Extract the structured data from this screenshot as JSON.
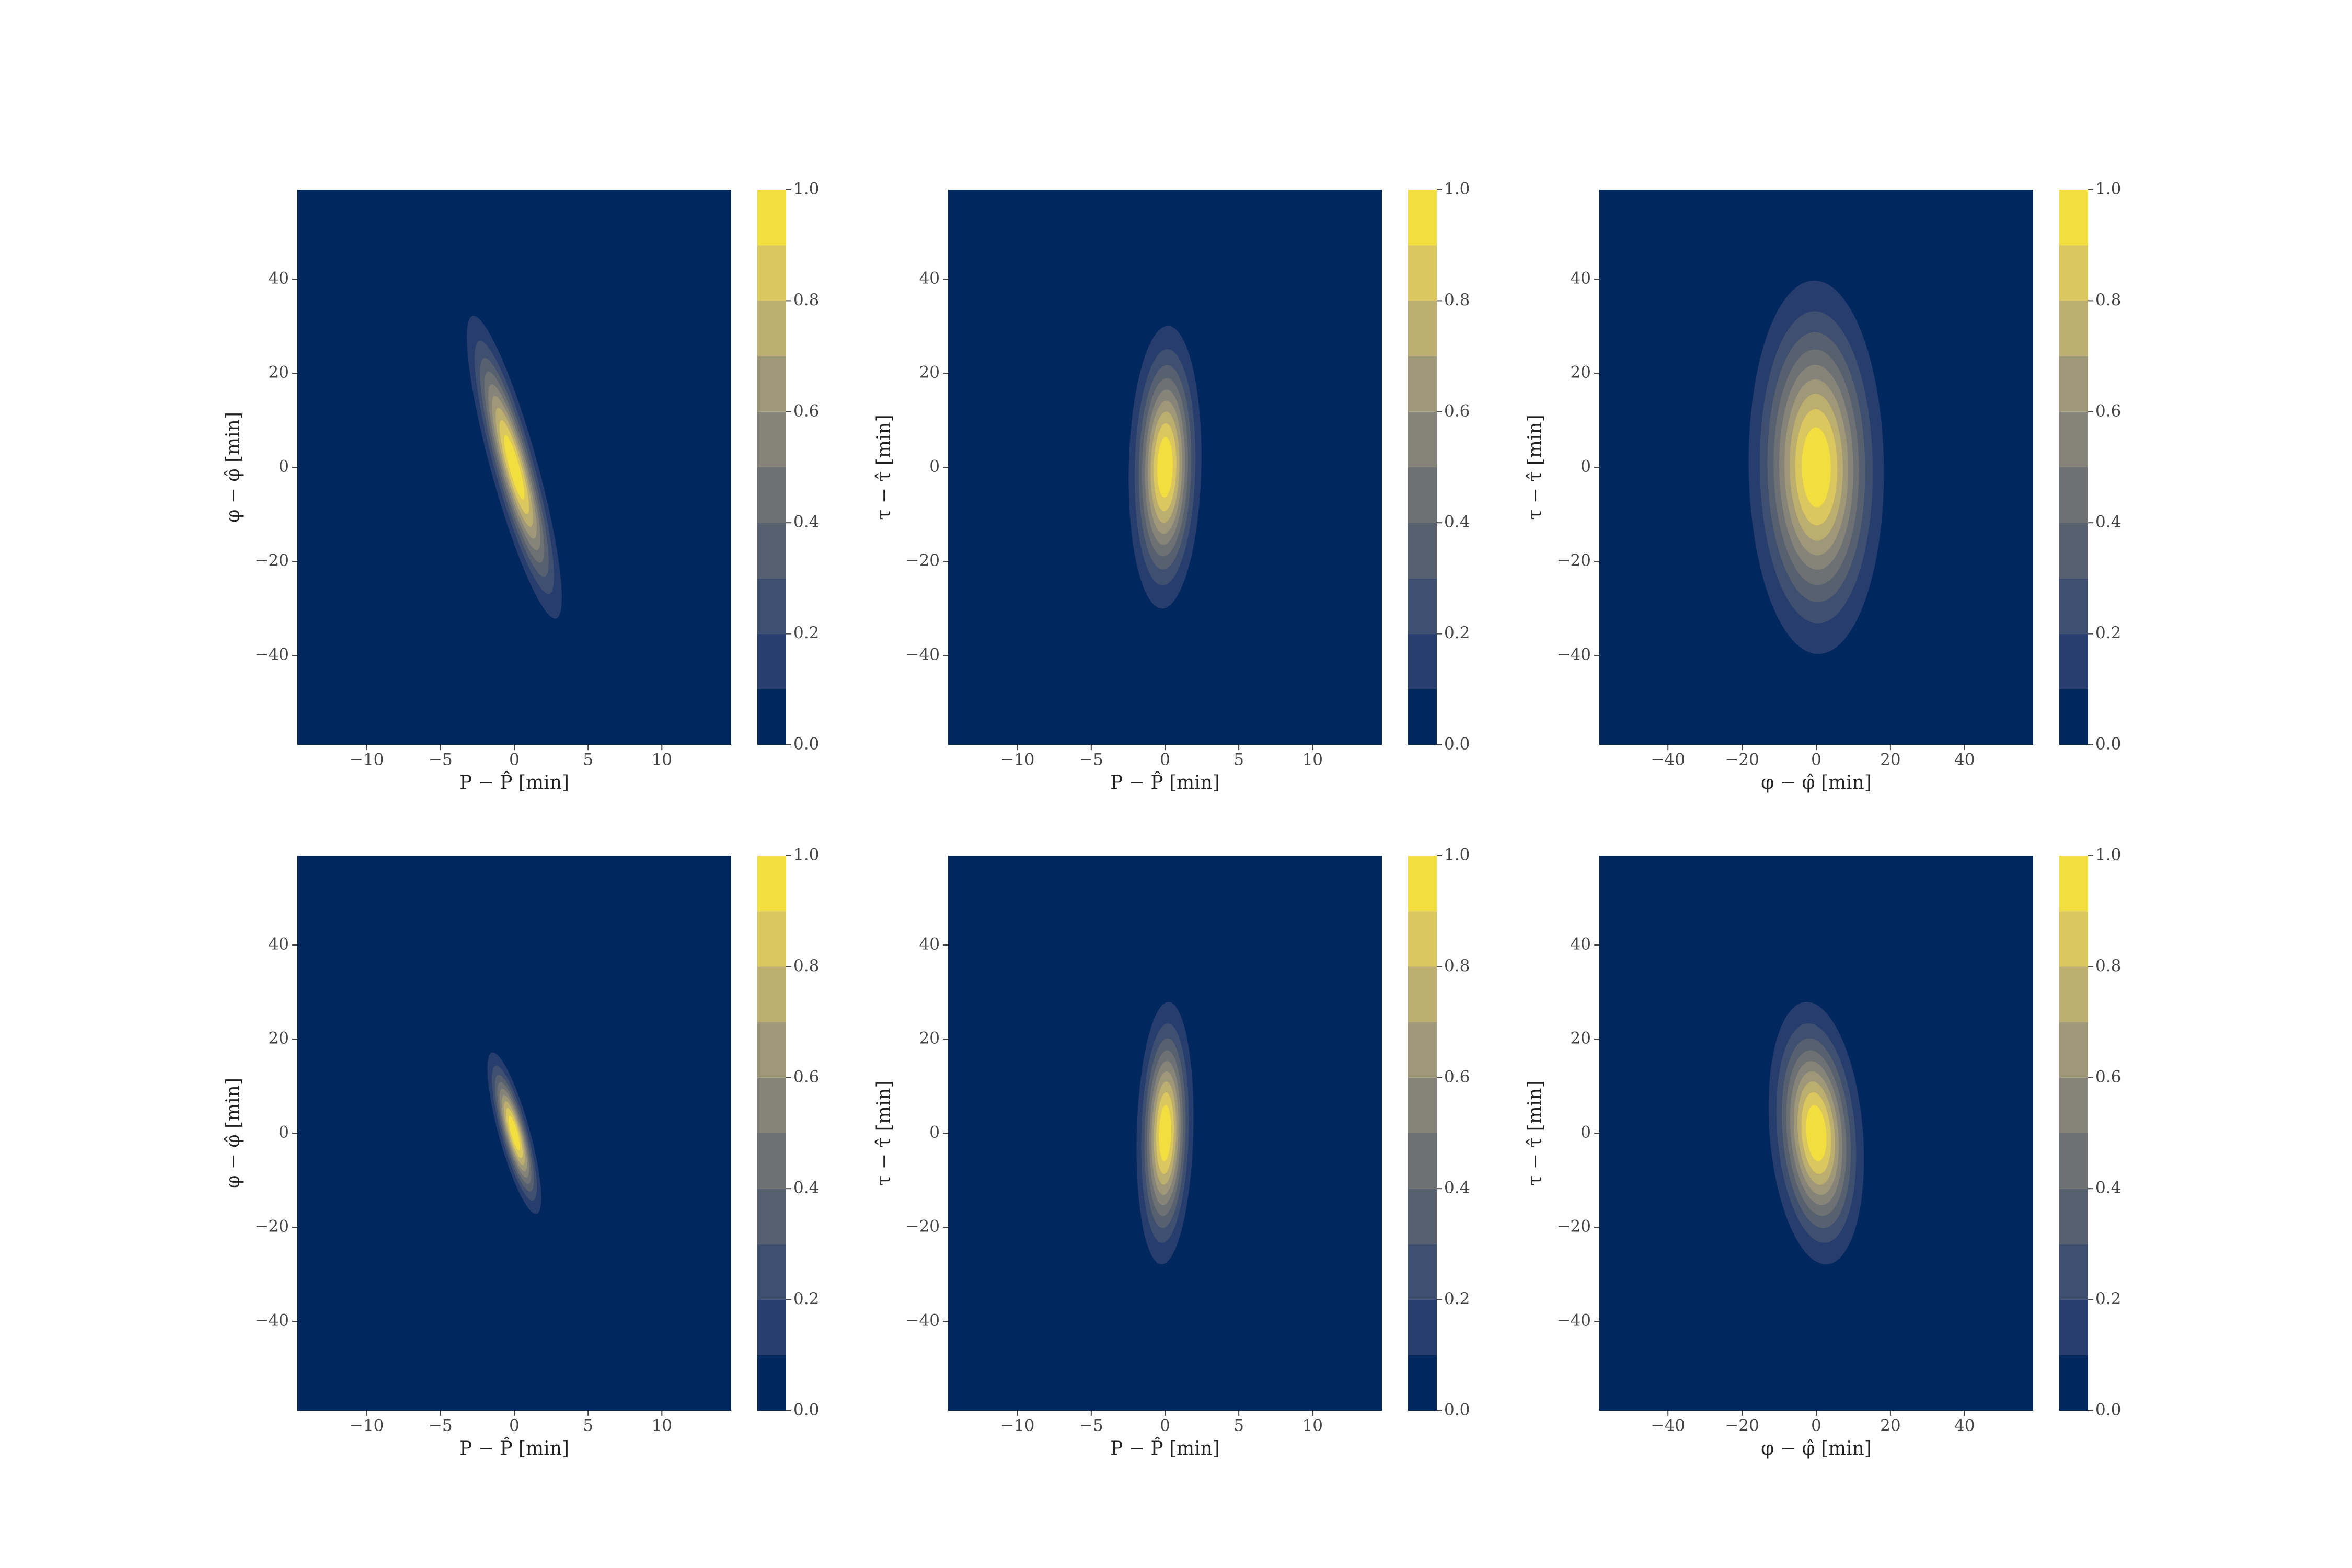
{
  "chart_data": [
    {
      "type": "contour",
      "xlabel": "P − P̂ [min]",
      "ylabel": "φ − φ̂ [min]",
      "xlim": [
        -14.7,
        14.7
      ],
      "ylim": [
        -59,
        59
      ],
      "xticks": [
        {
          "value": -10,
          "label": "−10"
        },
        {
          "value": -5,
          "label": "−5"
        },
        0,
        5,
        10
      ],
      "yticks": [
        {
          "value": -40,
          "label": "−40"
        },
        {
          "value": -20,
          "label": "−20"
        },
        0,
        20,
        40
      ],
      "levels": [
        0,
        0.1,
        0.2,
        0.3,
        0.4,
        0.5,
        0.6,
        0.7,
        0.8,
        0.9,
        1
      ],
      "colors": [
        "#00275e",
        "#263d6e",
        "#3f4f6f",
        "#57606f",
        "#6e7173",
        "#868479",
        "#9f9878",
        "#bcae6e",
        "#dac75d",
        "#f3de3f"
      ],
      "clim": [
        0,
        1
      ],
      "cticks": [
        {
          "value": 0,
          "label": "0.0"
        },
        0.2,
        0.4,
        0.6,
        0.8,
        {
          "value": 1,
          "label": "1.0"
        }
      ]
    },
    {
      "type": "contour",
      "xlabel": "P − P̂ [min]",
      "ylabel": "τ − τ̂ [min]",
      "xlim": [
        -14.7,
        14.7
      ],
      "ylim": [
        -59,
        59
      ],
      "xticks": [
        {
          "value": -10,
          "label": "−10"
        },
        {
          "value": -5,
          "label": "−5"
        },
        0,
        5,
        10
      ],
      "yticks": [
        {
          "value": -40,
          "label": "−40"
        },
        {
          "value": -20,
          "label": "−20"
        },
        0,
        20,
        40
      ],
      "levels": [
        0,
        0.1,
        0.2,
        0.3,
        0.4,
        0.5,
        0.6,
        0.7,
        0.8,
        0.9,
        1
      ],
      "colors": [
        "#00275e",
        "#263d6e",
        "#3f4f6f",
        "#57606f",
        "#6e7173",
        "#868479",
        "#9f9878",
        "#bcae6e",
        "#dac75d",
        "#f3de3f"
      ],
      "clim": [
        0,
        1
      ],
      "cticks": [
        {
          "value": 0,
          "label": "0.0"
        },
        0.2,
        0.4,
        0.6,
        0.8,
        {
          "value": 1,
          "label": "1.0"
        }
      ]
    },
    {
      "type": "contour",
      "xlabel": "φ − φ̂ [min]",
      "ylabel": "τ − τ̂ [min]",
      "xlim": [
        -58.5,
        58.5
      ],
      "ylim": [
        -59,
        59
      ],
      "xticks": [
        {
          "value": -40,
          "label": "−40"
        },
        {
          "value": -20,
          "label": "−20"
        },
        0,
        20,
        40
      ],
      "yticks": [
        {
          "value": -40,
          "label": "−40"
        },
        {
          "value": -20,
          "label": "−20"
        },
        0,
        20,
        40
      ],
      "levels": [
        0,
        0.1,
        0.2,
        0.3,
        0.4,
        0.5,
        0.6,
        0.7,
        0.8,
        0.9,
        1
      ],
      "colors": [
        "#00275e",
        "#263d6e",
        "#3f4f6f",
        "#57606f",
        "#6e7173",
        "#868479",
        "#9f9878",
        "#bcae6e",
        "#dac75d",
        "#f3de3f"
      ],
      "clim": [
        0,
        1
      ],
      "cticks": [
        {
          "value": 0,
          "label": "0.0"
        },
        0.2,
        0.4,
        0.6,
        0.8,
        {
          "value": 1,
          "label": "1.0"
        }
      ]
    },
    {
      "type": "contour",
      "xlabel": "P − P̂ [min]",
      "ylabel": "φ − φ̂ [min]",
      "xlim": [
        -14.7,
        14.7
      ],
      "ylim": [
        -59,
        59
      ],
      "xticks": [
        {
          "value": -10,
          "label": "−10"
        },
        {
          "value": -5,
          "label": "−5"
        },
        0,
        5,
        10
      ],
      "yticks": [
        {
          "value": -40,
          "label": "−40"
        },
        {
          "value": -20,
          "label": "−20"
        },
        0,
        20,
        40
      ],
      "levels": [
        0,
        0.1,
        0.2,
        0.3,
        0.4,
        0.5,
        0.6,
        0.7,
        0.8,
        0.9,
        1
      ],
      "colors": [
        "#00275e",
        "#263d6e",
        "#3f4f6f",
        "#57606f",
        "#6e7173",
        "#868479",
        "#9f9878",
        "#bcae6e",
        "#dac75d",
        "#f3de3f"
      ],
      "clim": [
        0,
        1
      ],
      "cticks": [
        {
          "value": 0,
          "label": "0.0"
        },
        0.2,
        0.4,
        0.6,
        0.8,
        {
          "value": 1,
          "label": "1.0"
        }
      ]
    },
    {
      "type": "contour",
      "xlabel": "P − P̂ [min]",
      "ylabel": "τ − τ̂ [min]",
      "xlim": [
        -14.7,
        14.7
      ],
      "ylim": [
        -59,
        59
      ],
      "xticks": [
        {
          "value": -10,
          "label": "−10"
        },
        {
          "value": -5,
          "label": "−5"
        },
        0,
        5,
        10
      ],
      "yticks": [
        {
          "value": -40,
          "label": "−40"
        },
        {
          "value": -20,
          "label": "−20"
        },
        0,
        20,
        40
      ],
      "levels": [
        0,
        0.1,
        0.2,
        0.3,
        0.4,
        0.5,
        0.6,
        0.7,
        0.8,
        0.9,
        1
      ],
      "colors": [
        "#00275e",
        "#263d6e",
        "#3f4f6f",
        "#57606f",
        "#6e7173",
        "#868479",
        "#9f9878",
        "#bcae6e",
        "#dac75d",
        "#f3de3f"
      ],
      "clim": [
        0,
        1
      ],
      "cticks": [
        {
          "value": 0,
          "label": "0.0"
        },
        0.2,
        0.4,
        0.6,
        0.8,
        {
          "value": 1,
          "label": "1.0"
        }
      ]
    },
    {
      "type": "contour",
      "xlabel": "φ − φ̂ [min]",
      "ylabel": "τ − τ̂ [min]",
      "xlim": [
        -58.5,
        58.5
      ],
      "ylim": [
        -59,
        59
      ],
      "xticks": [
        {
          "value": -40,
          "label": "−40"
        },
        {
          "value": -20,
          "label": "−20"
        },
        0,
        20,
        40
      ],
      "yticks": [
        {
          "value": -40,
          "label": "−40"
        },
        {
          "value": -20,
          "label": "−20"
        },
        0,
        20,
        40
      ],
      "levels": [
        0,
        0.1,
        0.2,
        0.3,
        0.4,
        0.5,
        0.6,
        0.7,
        0.8,
        0.9,
        1
      ],
      "colors": [
        "#00275e",
        "#263d6e",
        "#3f4f6f",
        "#57606f",
        "#6e7173",
        "#868479",
        "#9f9878",
        "#bcae6e",
        "#dac75d",
        "#f3de3f"
      ],
      "clim": [
        0,
        1
      ],
      "cticks": [
        {
          "value": 0,
          "label": "0.0"
        },
        0.2,
        0.4,
        0.6,
        0.8,
        {
          "value": 1,
          "label": "1.0"
        }
      ]
    }
  ]
}
